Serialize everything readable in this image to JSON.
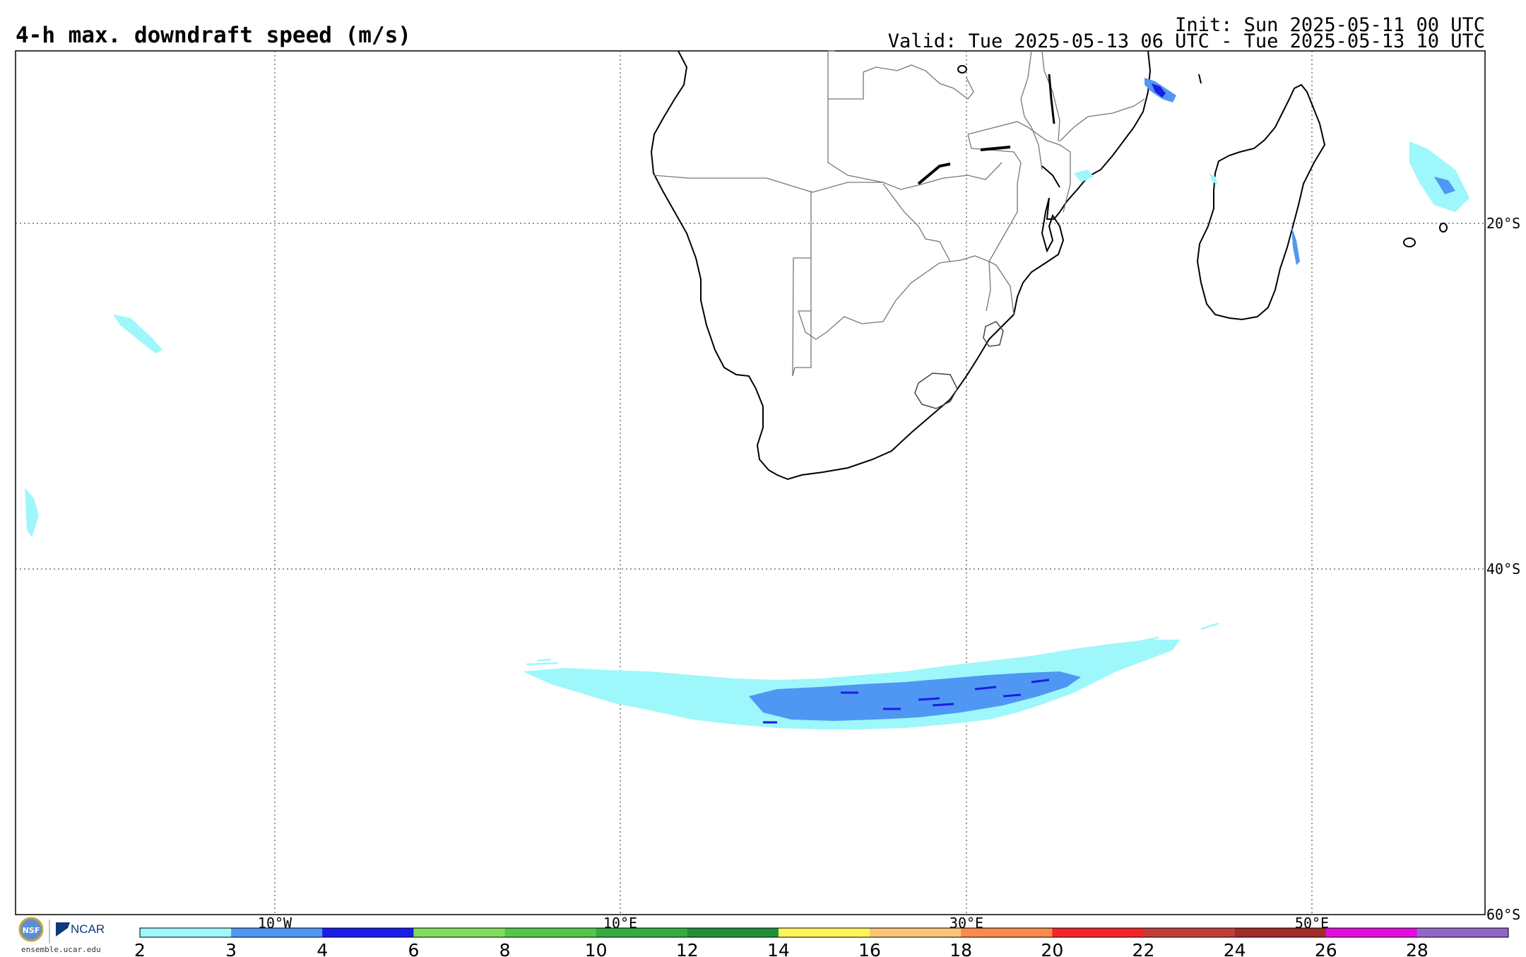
{
  "header": {
    "title": "4-h max. downdraft speed (m/s)",
    "init": "Init: Sun 2025-05-11 00 UTC",
    "valid": "Valid: Tue 2025-05-13 06 UTC - Tue 2025-05-13 10 UTC"
  },
  "map": {
    "lat_labels": [
      "20°S",
      "40°S",
      "60°S"
    ],
    "lon_labels": [
      "10°W",
      "10°E",
      "30°E",
      "50°E"
    ],
    "gridlines": "dotted",
    "coastline_color": "#000000",
    "border_color": "#777777"
  },
  "colorbar": {
    "ticks": [
      "2",
      "3",
      "4",
      "6",
      "8",
      "10",
      "12",
      "14",
      "16",
      "18",
      "20",
      "22",
      "24",
      "26",
      "28"
    ],
    "colors": [
      "#9ef7fb",
      "#4f97f3",
      "#1a1de6",
      "#7fdd5d",
      "#52c74a",
      "#34ac40",
      "#228f3a",
      "#fef55a",
      "#fbc776",
      "#fb8a4d",
      "#f2262a",
      "#c23e3b",
      "#9f2d2a",
      "#e30ede",
      "#9266c9"
    ]
  },
  "credits": {
    "org": "NCAR",
    "site": "ensemble.ucar.edu"
  }
}
